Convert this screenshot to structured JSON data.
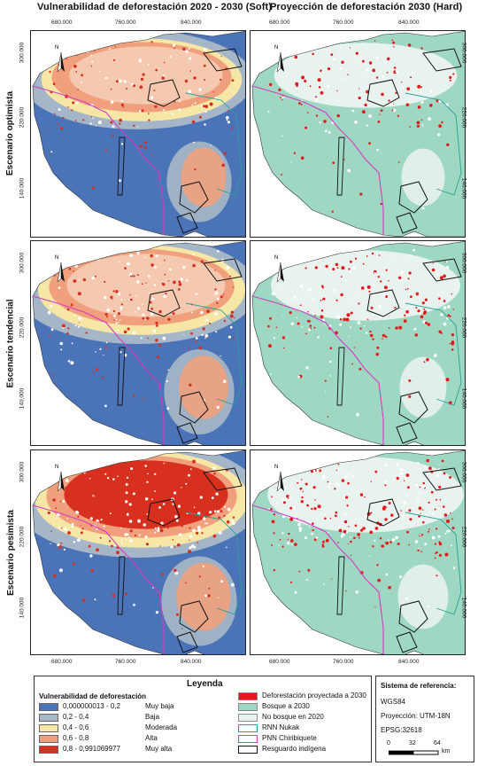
{
  "columns": [
    {
      "title": "Vulnerabilidad de deforestación 2020 - 2030 (Soft)"
    },
    {
      "title": "Proyección de deforestación 2030 (Hard)"
    }
  ],
  "rows": [
    {
      "title": "Escenario optimista"
    },
    {
      "title": "Escenario tendencial"
    },
    {
      "title": "Escenario pesimista"
    }
  ],
  "x_ticks": [
    "680.000",
    "760.000",
    "840.000"
  ],
  "y_ticks": [
    "300.000",
    "220.000",
    "140.000"
  ],
  "north_label": "N",
  "legend": {
    "title": "Leyenda",
    "vuln_title": "Vulnerabilidad de deforestación",
    "vuln_classes": [
      {
        "range": "0,000000013 - 0,2",
        "label": "Muy baja",
        "color": "#4a73b8"
      },
      {
        "range": "0,2 - 0,4",
        "label": "Baja",
        "color": "#a9b9c7"
      },
      {
        "range": "0,4 - 0,6",
        "label": "Moderada",
        "color": "#f6e7a6"
      },
      {
        "range": "0,6 - 0,8",
        "label": "Alta",
        "color": "#f0a07c"
      },
      {
        "range": "0,8 - 0,991069977",
        "label": "Muy alta",
        "color": "#d7301f"
      }
    ],
    "hard_classes": [
      {
        "label": "Deforestación proyectada a 2030",
        "type": "fill",
        "color": "#e31a1c"
      },
      {
        "label": "Bosque a 2030",
        "type": "fill",
        "color": "#9fd8c2"
      },
      {
        "label": "No bosque en 2020",
        "type": "fill",
        "color": "#e8f2ef"
      },
      {
        "label": "RNN Nukak",
        "type": "outline",
        "color": "#2aa198"
      },
      {
        "label": "PNN Chiribiquete",
        "type": "outline",
        "color": "#d63ac4"
      },
      {
        "label": "Resguardo indígena",
        "type": "outline",
        "color": "#111111"
      }
    ]
  },
  "reference": {
    "title": "Sistema de referencia:",
    "datum": "WGS84",
    "projection": "Proyección: UTM-18N",
    "epsg": "EPSG:32618",
    "scale_labels": [
      "0",
      "32",
      "64"
    ],
    "scale_unit": "km"
  },
  "colors": {
    "low": "#4a73b8",
    "forest": "#9fd8c2",
    "deforest": "#e31a1c",
    "nukak": "#2aa198",
    "chiribiquete": "#d63ac4"
  }
}
